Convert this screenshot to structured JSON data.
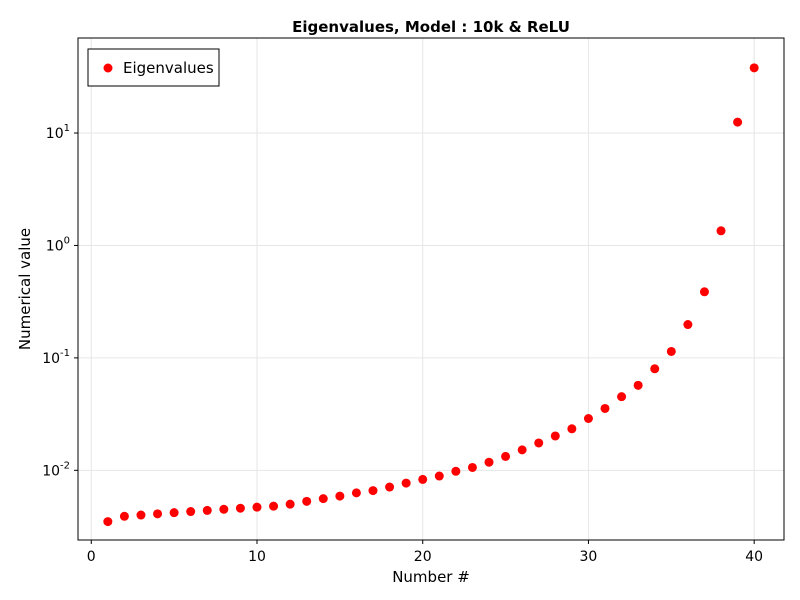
{
  "chart_data": {
    "type": "scatter",
    "title": "Eigenvalues, Model : 10k & ReLU",
    "xlabel": "Number #",
    "ylabel": "Numerical value",
    "yscale": "log10",
    "xlim": [
      -0.8,
      41.8
    ],
    "ylim": [
      0.0024,
      70
    ],
    "x_ticks": [
      0,
      10,
      20,
      30,
      40
    ],
    "y_ticks": [
      {
        "value": 0.01,
        "base": "10",
        "exp": "-2"
      },
      {
        "value": 0.1,
        "base": "10",
        "exp": "-1"
      },
      {
        "value": 1,
        "base": "10",
        "exp": "0"
      },
      {
        "value": 10,
        "base": "10",
        "exp": "1"
      }
    ],
    "grid": true,
    "legend_position": "top-left",
    "series": [
      {
        "name": "Eigenvalues",
        "color": "#ff0000",
        "marker": "circle",
        "x": [
          1,
          2,
          3,
          4,
          5,
          6,
          7,
          8,
          9,
          10,
          11,
          12,
          13,
          14,
          15,
          16,
          17,
          18,
          19,
          20,
          21,
          22,
          23,
          24,
          25,
          26,
          27,
          28,
          29,
          30,
          31,
          32,
          33,
          34,
          35,
          36,
          37,
          38,
          39,
          40
        ],
        "y": [
          0.0035,
          0.0039,
          0.004,
          0.0041,
          0.0042,
          0.0043,
          0.0044,
          0.0045,
          0.0046,
          0.0047,
          0.0048,
          0.005,
          0.0053,
          0.0056,
          0.0059,
          0.0063,
          0.0066,
          0.0071,
          0.0077,
          0.0083,
          0.0089,
          0.0098,
          0.0106,
          0.0118,
          0.0133,
          0.0152,
          0.0175,
          0.0202,
          0.0234,
          0.0289,
          0.0355,
          0.0452,
          0.057,
          0.08,
          0.114,
          0.198,
          0.387,
          1.35,
          12.5,
          38.0
        ]
      }
    ]
  }
}
